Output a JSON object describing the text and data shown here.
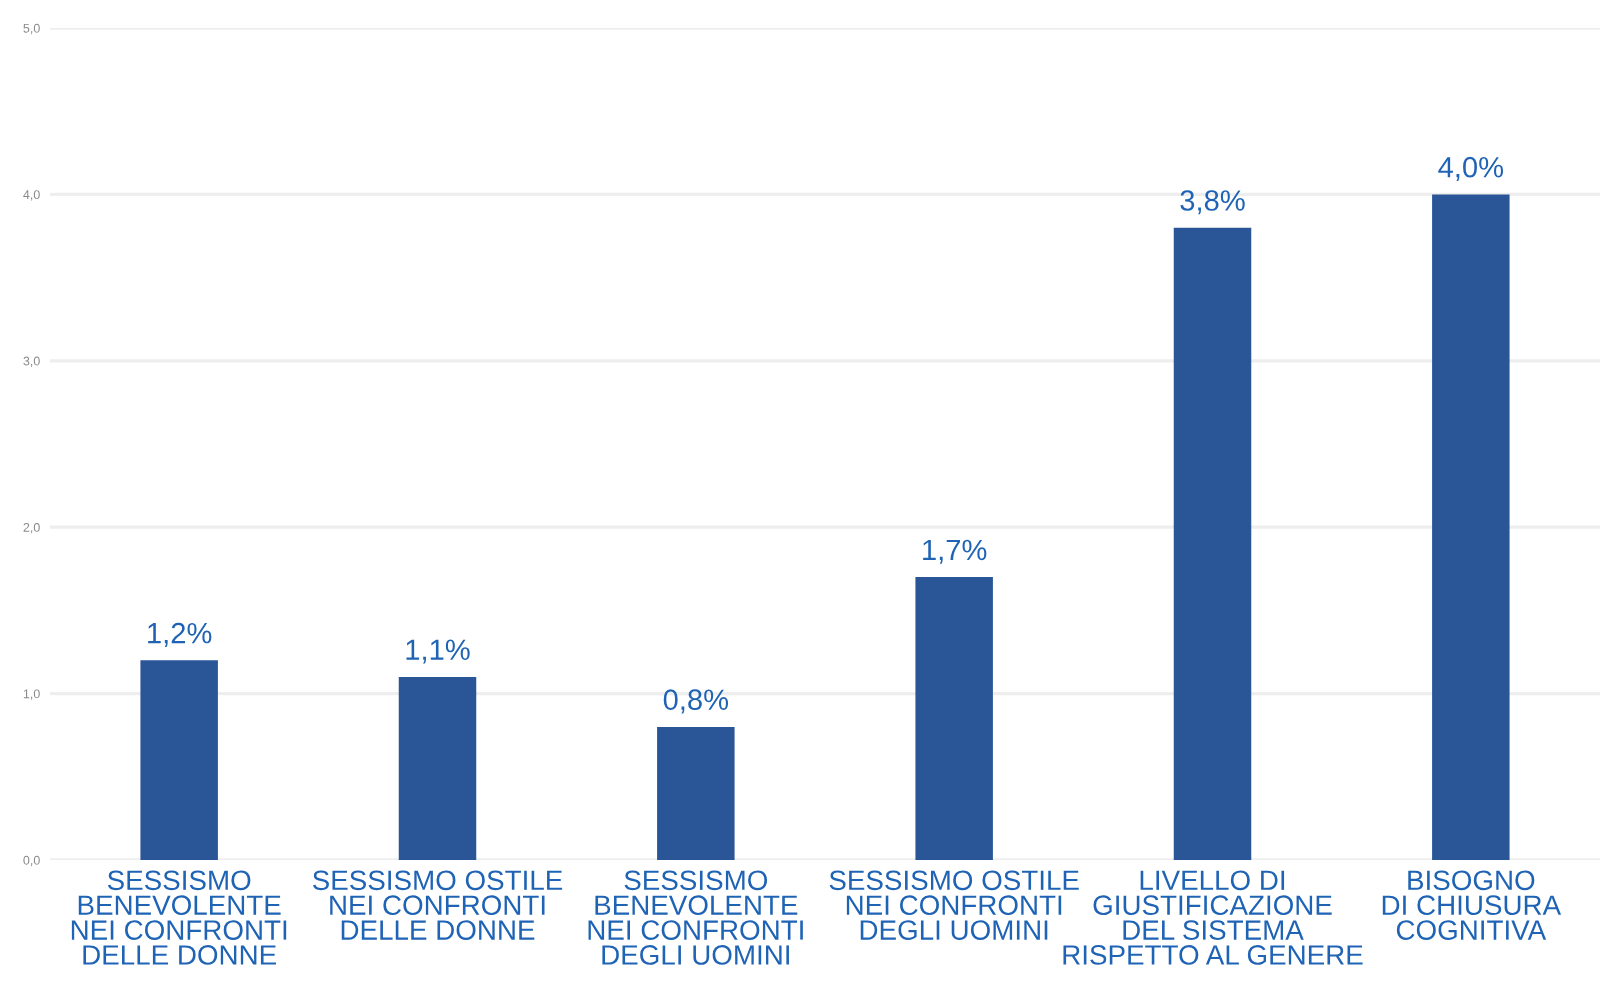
{
  "chart_data": {
    "type": "bar",
    "categories": [
      "SESSISMO\nBENEVOLENTE\nNEI CONFRONTI\nDELLE DONNE",
      "SESSISMO OSTILE\nNEI CONFRONTI\nDELLE DONNE",
      "SESSISMO\nBENEVOLENTE\nNEI CONFRONTI\nDEGLI UOMINI",
      "SESSISMO OSTILE\nNEI CONFRONTI\nDEGLI UOMINI",
      "LIVELLO DI\nGIUSTIFICAZIONE\nDEL SISTEMA\nRISPETTO AL GENERE",
      "BISOGNO\nDI CHIUSURA\nCOGNITIVA"
    ],
    "values": [
      1.2,
      1.1,
      0.8,
      1.7,
      3.8,
      4.0
    ],
    "value_labels": [
      "1,2%",
      "1,1%",
      "0,8%",
      "1,7%",
      "3,8%",
      "4,0%"
    ],
    "color": "#2a5698",
    "ylim": [
      0,
      5
    ],
    "yticks": [
      {
        "value": 0,
        "label": "0,0"
      },
      {
        "value": 1,
        "label": "1,0"
      },
      {
        "value": 2,
        "label": "2,0"
      },
      {
        "value": 3,
        "label": "3,0"
      },
      {
        "value": 4,
        "label": "4,0"
      },
      {
        "value": 5,
        "label": "5,0"
      }
    ],
    "grid": "y"
  }
}
